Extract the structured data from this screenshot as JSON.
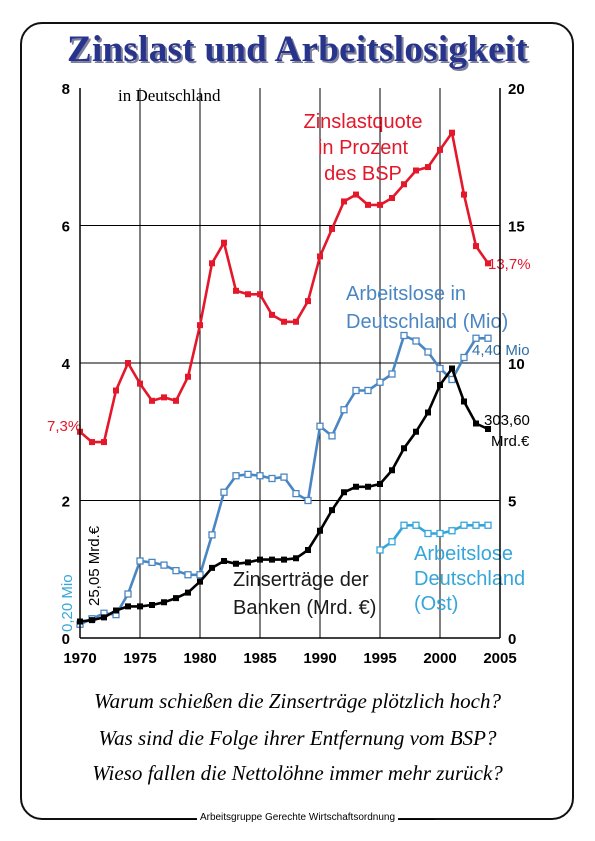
{
  "page": {
    "title": "Zinslast und Arbeitslosigkeit",
    "subtitle": "in Deutschland",
    "questions": [
      "Warum schießen die Zinserträge plötzlich hoch?",
      "Was sind die Folge ihrer Entfernung vom BSP?",
      "Wieso fallen die Nettolöhne immer mehr zurück?"
    ],
    "footer": "Arbeitsgruppe Gerechte Wirtschaftsordnung"
  },
  "chart_data": {
    "type": "line",
    "x_ticks": [
      1970,
      1975,
      1980,
      1985,
      1990,
      1995,
      2000,
      2005
    ],
    "xlim": [
      1970,
      2005
    ],
    "y_left": {
      "ticks": [
        0,
        2,
        4,
        6,
        8
      ],
      "lim": [
        0,
        8
      ]
    },
    "y_right": {
      "ticks": [
        0,
        5,
        10,
        15,
        20
      ],
      "lim": [
        0,
        20
      ]
    },
    "grid": true,
    "series": [
      {
        "name_lines": [
          "Zinslastquote",
          "in Prozent",
          "des BSP"
        ],
        "axis": "left",
        "color": "#e4172b",
        "marker": "filled-square",
        "x": [
          1970,
          1971,
          1972,
          1973,
          1974,
          1975,
          1976,
          1977,
          1978,
          1979,
          1980,
          1981,
          1982,
          1983,
          1984,
          1985,
          1986,
          1987,
          1988,
          1989,
          1990,
          1991,
          1992,
          1993,
          1994,
          1995,
          1996,
          1997,
          1998,
          1999,
          2000,
          2001,
          2002,
          2003,
          2004
        ],
        "y": [
          3.0,
          2.85,
          2.85,
          3.6,
          4.0,
          3.7,
          3.45,
          3.5,
          3.45,
          3.8,
          4.55,
          5.45,
          5.75,
          5.05,
          5.0,
          5.0,
          4.7,
          4.6,
          4.6,
          4.9,
          5.55,
          5.95,
          6.35,
          6.45,
          6.3,
          6.3,
          6.4,
          6.6,
          6.8,
          6.85,
          7.1,
          7.35,
          6.45,
          5.7,
          5.45
        ],
        "start_label": "7,3%",
        "end_label": "13,7%"
      },
      {
        "name_lines": [
          "Arbeitslose in",
          "Deutschland (Mio)"
        ],
        "axis": "right",
        "color": "#4a86c2",
        "marker": "hollow-square",
        "x": [
          1970,
          1971,
          1972,
          1973,
          1974,
          1975,
          1976,
          1977,
          1978,
          1979,
          1980,
          1981,
          1982,
          1983,
          1984,
          1985,
          1986,
          1987,
          1988,
          1989,
          1990,
          1991,
          1992,
          1993,
          1994,
          1995,
          1996,
          1997,
          1998,
          1999,
          2000,
          2001,
          2002,
          2003,
          2004
        ],
        "y": [
          0.5,
          0.7,
          0.9,
          0.85,
          1.6,
          2.8,
          2.75,
          2.65,
          2.45,
          2.3,
          2.3,
          3.75,
          5.3,
          5.9,
          5.95,
          5.9,
          5.8,
          5.85,
          5.25,
          5.0,
          7.7,
          7.35,
          8.3,
          9.0,
          9.0,
          9.3,
          9.6,
          11.0,
          10.8,
          10.4,
          9.8,
          9.4,
          10.2,
          10.9,
          10.9
        ],
        "start_label": "0,20 Mio",
        "end_label": "4,40 Mio"
      },
      {
        "name_lines": [
          "Zinserträge der",
          "Banken (Mrd. €)"
        ],
        "axis": "right",
        "color": "#000000",
        "marker": "filled-square",
        "x": [
          1970,
          1971,
          1972,
          1973,
          1974,
          1975,
          1976,
          1977,
          1978,
          1979,
          1980,
          1981,
          1982,
          1983,
          1984,
          1985,
          1986,
          1987,
          1988,
          1989,
          1990,
          1991,
          1992,
          1993,
          1994,
          1995,
          1996,
          1997,
          1998,
          1999,
          2000,
          2001,
          2002,
          2003,
          2004
        ],
        "y": [
          0.6,
          0.65,
          0.75,
          1.0,
          1.15,
          1.15,
          1.2,
          1.3,
          1.45,
          1.65,
          2.05,
          2.55,
          2.8,
          2.7,
          2.75,
          2.85,
          2.85,
          2.85,
          2.9,
          3.2,
          3.9,
          4.65,
          5.3,
          5.5,
          5.5,
          5.6,
          6.1,
          6.9,
          7.5,
          8.2,
          9.2,
          9.8,
          8.6,
          7.8,
          7.6
        ],
        "start_label": "25,05 Mrd.€",
        "end_label_lines": [
          "303,60",
          "Mrd.€"
        ]
      },
      {
        "name_lines": [
          "Arbeitslose",
          "Deutschland",
          "(Ost)"
        ],
        "axis": "right",
        "color": "#35a6d9",
        "marker": "hollow-square",
        "x": [
          1995,
          1996,
          1997,
          1998,
          1999,
          2000,
          2001,
          2002,
          2003,
          2004
        ],
        "y": [
          3.2,
          3.5,
          4.1,
          4.1,
          3.8,
          3.8,
          3.9,
          4.1,
          4.1,
          4.1
        ]
      }
    ]
  }
}
